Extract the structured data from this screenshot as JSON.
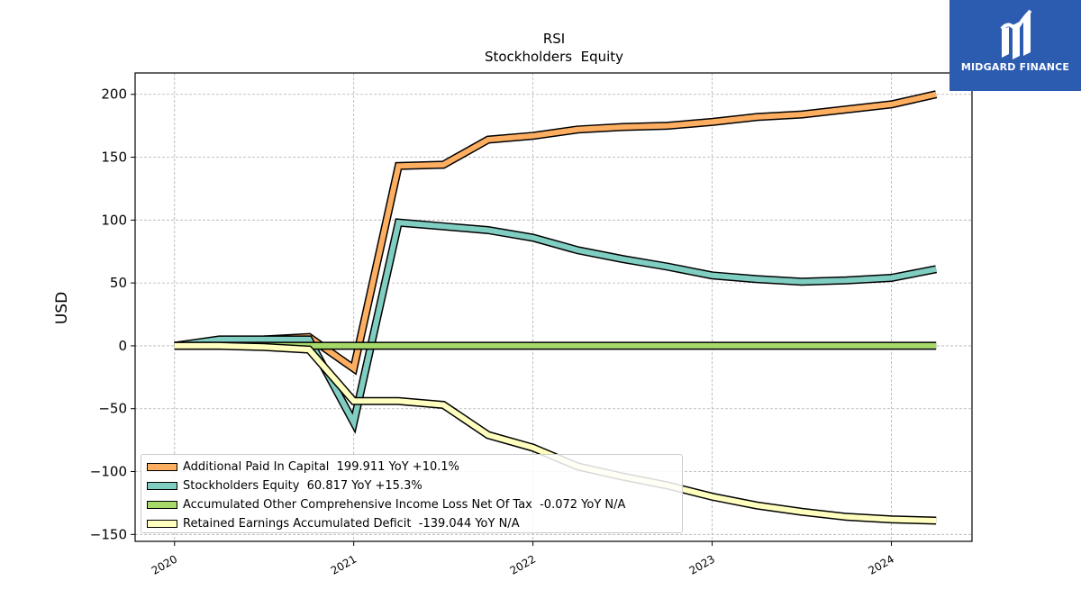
{
  "chart_data": {
    "type": "line",
    "title": "RSI",
    "subtitle": "Stockholders  Equity",
    "ylabel": "USD",
    "xlim": [
      2019.78,
      2024.45
    ],
    "ylim": [
      -155.5,
      217
    ],
    "yticks": [
      200,
      150,
      100,
      50,
      0,
      -50,
      -100,
      -150
    ],
    "ytick_labels": [
      "200",
      "150",
      "100",
      "50",
      "0",
      "−50",
      "−100",
      "−150"
    ],
    "xticks": [
      2020,
      2021,
      2022,
      2023,
      2024
    ],
    "xtick_labels": [
      "2020",
      "2021",
      "2022",
      "2023",
      "2024"
    ],
    "grid": true,
    "legend_position": "lower-left",
    "x": [
      2020.0,
      2020.25,
      2020.5,
      2020.75,
      2021.0,
      2021.25,
      2021.5,
      2021.75,
      2022.0,
      2022.25,
      2022.5,
      2022.75,
      2023.0,
      2023.25,
      2023.5,
      2023.75,
      2024.0,
      2024.25
    ],
    "series": [
      {
        "name": "Additional Paid In Capital",
        "legend_label": "Additional Paid In Capital  199.911 YoY +10.1%",
        "color": "#fdae61",
        "values": [
          0,
          4,
          5,
          7,
          -18,
          143,
          144,
          164,
          167,
          172,
          174,
          175,
          178,
          182,
          184,
          188,
          192,
          200
        ]
      },
      {
        "name": "Stockholders Equity",
        "legend_label": "Stockholders Equity  60.817 YoY +15.3%",
        "color": "#80cdc1",
        "values": [
          0,
          5,
          5,
          5,
          -61,
          98,
          95,
          92,
          86,
          76,
          69,
          63,
          56,
          53,
          51,
          52,
          54,
          61
        ]
      },
      {
        "name": "Accumulated Other Comprehensive Income Loss Net Of Tax",
        "legend_label": "Accumulated Other Comprehensive Income Loss Net Of Tax  -0.072 YoY N/A",
        "color": "#a6d96a",
        "values": [
          0,
          0,
          0,
          0,
          0,
          0,
          0,
          0,
          0,
          0,
          0,
          0,
          0,
          0,
          0,
          0,
          0,
          0
        ]
      },
      {
        "name": "Retained Earnings Accumulated Deficit",
        "legend_label": "Retained Earnings Accumulated Deficit  -139.044 YoY N/A",
        "color": "#ffffbf",
        "values": [
          0,
          0,
          -1,
          -3,
          -44,
          -44,
          -47,
          -71,
          -81,
          -96,
          -104,
          -111,
          -120,
          -127,
          -132,
          -136,
          -138,
          -139
        ]
      }
    ]
  },
  "logo": {
    "text": "MIDGARD FINANCE",
    "bg_color": "#2c5cb0",
    "icon": "midgard-logo-icon"
  }
}
